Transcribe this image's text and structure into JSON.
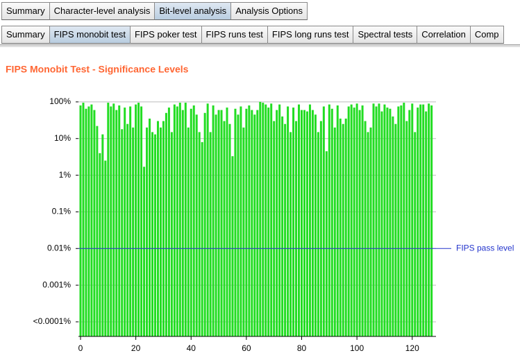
{
  "tabs": [
    {
      "label": "Summary",
      "selected": false
    },
    {
      "label": "Character-level analysis",
      "selected": false
    },
    {
      "label": "Bit-level analysis",
      "selected": true
    },
    {
      "label": "Analysis Options",
      "selected": false
    }
  ],
  "subtabs": [
    {
      "label": "Summary",
      "selected": false
    },
    {
      "label": "FIPS monobit test",
      "selected": true
    },
    {
      "label": "FIPS poker test",
      "selected": false
    },
    {
      "label": "FIPS runs test",
      "selected": false
    },
    {
      "label": "FIPS long runs test",
      "selected": false
    },
    {
      "label": "Spectral tests",
      "selected": false
    },
    {
      "label": "Correlation",
      "selected": false
    },
    {
      "label": "Comp",
      "selected": false
    }
  ],
  "chart_data": {
    "type": "bar",
    "title": "FIPS Monobit Test - Significance Levels",
    "color": "#22dd22",
    "log_y": true,
    "grid": true,
    "x": [
      0,
      1,
      2,
      3,
      4,
      5,
      6,
      7,
      8,
      9,
      10,
      11,
      12,
      13,
      14,
      15,
      16,
      17,
      18,
      19,
      20,
      21,
      22,
      23,
      24,
      25,
      26,
      27,
      28,
      29,
      30,
      31,
      32,
      33,
      34,
      35,
      36,
      37,
      38,
      39,
      40,
      41,
      42,
      43,
      44,
      45,
      46,
      47,
      48,
      49,
      50,
      51,
      52,
      53,
      54,
      55,
      56,
      57,
      58,
      59,
      60,
      61,
      62,
      63,
      64,
      65,
      66,
      67,
      68,
      69,
      70,
      71,
      72,
      73,
      74,
      75,
      76,
      77,
      78,
      79,
      80,
      81,
      82,
      83,
      84,
      85,
      86,
      87,
      88,
      89,
      90,
      91,
      92,
      93,
      94,
      95,
      96,
      97,
      98,
      99,
      100,
      101,
      102,
      103,
      104,
      105,
      106,
      107,
      108,
      109,
      110,
      111,
      112,
      113,
      114,
      115,
      116,
      117,
      118,
      119,
      120,
      121,
      122,
      123,
      124,
      125,
      126,
      127
    ],
    "values": [
      80,
      95,
      65,
      75,
      85,
      60,
      22,
      4,
      13,
      2.5,
      95,
      75,
      90,
      60,
      80,
      18,
      70,
      25,
      75,
      20,
      85,
      95,
      75,
      1.7,
      20,
      35,
      15,
      13,
      30,
      20,
      30,
      50,
      70,
      15,
      85,
      75,
      95,
      60,
      95,
      20,
      65,
      80,
      45,
      15,
      8,
      50,
      90,
      15,
      80,
      45,
      60,
      60,
      30,
      70,
      25,
      3.3,
      65,
      45,
      75,
      20,
      65,
      80,
      60,
      45,
      60,
      100,
      95,
      85,
      70,
      90,
      30,
      60,
      85,
      40,
      25,
      75,
      15,
      70,
      30,
      85,
      60,
      60,
      55,
      85,
      60,
      45,
      15,
      30,
      75,
      4.5,
      85,
      65,
      20,
      80,
      35,
      25,
      35,
      75,
      85,
      70,
      90,
      60,
      80,
      30,
      15,
      20,
      90,
      75,
      90,
      55,
      85,
      70,
      65,
      40,
      25,
      75,
      80,
      95,
      30,
      60,
      90,
      15,
      70,
      85,
      85,
      55,
      90,
      80
    ],
    "xlim": [
      -0.75,
      128.6
    ],
    "xticks": [
      0,
      20,
      40,
      60,
      80,
      100,
      120
    ],
    "ylim": [
      4e-05,
      135
    ],
    "yticks": [
      {
        "value": 100,
        "label": "100%"
      },
      {
        "value": 10,
        "label": "10%"
      },
      {
        "value": 1,
        "label": "1%"
      },
      {
        "value": 0.1,
        "label": "0.1%"
      },
      {
        "value": 0.01,
        "label": "0.01%"
      },
      {
        "value": 0.001,
        "label": "0.001%"
      },
      {
        "value": 0.0001,
        "label": "<0.0001%"
      }
    ],
    "pass_level": {
      "value": 0.01,
      "label": "FIPS pass level",
      "color": "#2233cc"
    }
  }
}
